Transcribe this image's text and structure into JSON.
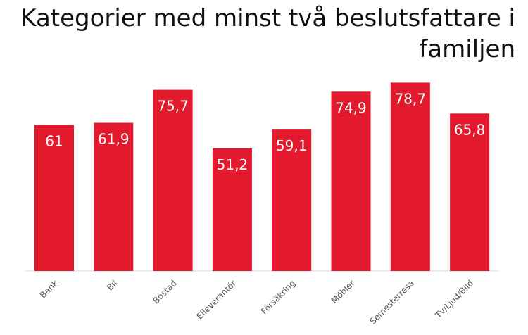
{
  "chart_data": {
    "type": "bar",
    "title": "Kategorier med minst två beslutsfattare i familjen",
    "categories": [
      "Bank",
      "Bil",
      "Bostad",
      "Elleverantör",
      "Försäkring",
      "Möbler",
      "Semesterresa",
      "Tv/Ljud/Bild"
    ],
    "values": [
      61,
      61.9,
      75.7,
      51.2,
      59.1,
      74.9,
      78.7,
      65.8
    ],
    "value_labels": [
      "61",
      "61,9",
      "75,7",
      "51,2",
      "59,1",
      "74,9",
      "78,7",
      "65,8"
    ],
    "ylim": [
      0,
      90
    ],
    "grid": false,
    "legend": "none",
    "bar_color": "#E31A2D",
    "xlabel": "",
    "ylabel": ""
  }
}
